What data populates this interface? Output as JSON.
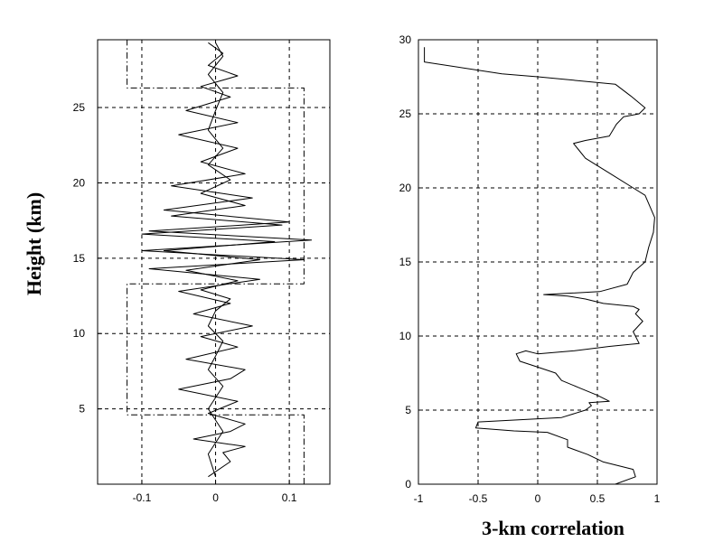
{
  "chart_data": [
    {
      "type": "line",
      "xlabel": "",
      "ylabel": "Height (km)",
      "xlim": [
        -0.16,
        0.155
      ],
      "ylim": [
        0,
        29.5
      ],
      "xticks": [
        -0.1,
        0,
        0.1
      ],
      "xtick_labels": [
        "-0.1",
        "0",
        "0.1"
      ],
      "yticks": [
        5,
        10,
        15,
        20,
        25
      ],
      "ytick_labels": [
        "5",
        "10",
        "15",
        "20",
        "25"
      ],
      "grid": true,
      "legend": "none",
      "series": [
        {
          "style": "solid",
          "x": [
            -0.01,
            0.02,
            0.01,
            0.04,
            -0.03,
            0.02,
            0.04,
            -0.01,
            0.03,
            -0.05,
            0.02,
            0.04,
            -0.04,
            0.03,
            -0.02,
            0.05,
            -0.03,
            0.02,
            -0.05,
            0.06,
            -0.09,
            0.12,
            -0.1,
            0.13,
            -0.09,
            0.1,
            -0.07,
            0.05,
            -0.06,
            0.04,
            -0.02,
            0.03,
            -0.05,
            0.03,
            -0.04,
            0.02,
            -0.02,
            0.03,
            -0.01,
            0.01,
            -0.01
          ],
          "y": [
            0.5,
            1.5,
            2.1,
            2.5,
            3.0,
            3.5,
            4.0,
            4.7,
            5.5,
            6.3,
            7.0,
            7.6,
            8.3,
            9.1,
            9.8,
            10.5,
            11.3,
            12.0,
            12.8,
            13.6,
            14.3,
            14.9,
            15.5,
            16.2,
            16.8,
            17.4,
            18.2,
            19.0,
            19.8,
            20.6,
            21.4,
            22.3,
            23.2,
            24.0,
            24.8,
            25.7,
            26.4,
            27.1,
            27.8,
            28.6,
            29.3
          ]
        },
        {
          "style": "solid",
          "x": [
            0.0,
            -0.01,
            0.01,
            -0.01,
            0.01,
            -0.01,
            0.0,
            0.01,
            -0.01,
            0.0,
            0.02,
            -0.02,
            0.03,
            -0.04,
            0.06,
            -0.07,
            0.08,
            -0.1,
            0.09,
            -0.06,
            0.04,
            -0.02,
            0.02,
            -0.01,
            0.01,
            -0.01,
            0.0,
            0.01,
            -0.01,
            0.01,
            0.0
          ],
          "y": [
            0.5,
            2.0,
            3.5,
            5.0,
            6.5,
            7.6,
            8.5,
            9.5,
            10.5,
            11.5,
            12.3,
            12.9,
            13.5,
            14.2,
            14.9,
            15.5,
            16.1,
            16.6,
            17.2,
            17.8,
            18.5,
            19.3,
            20.2,
            21.2,
            22.3,
            23.5,
            24.8,
            26.0,
            27.2,
            28.4,
            29.3
          ]
        },
        {
          "style": "dashdot",
          "x": [
            0.12,
            0.12,
            -0.12,
            -0.12,
            0.12,
            0.12,
            -0.12,
            -0.12,
            -0.12
          ],
          "y": [
            0.0,
            4.6,
            4.6,
            13.3,
            13.3,
            26.3,
            26.3,
            27.6,
            29.5
          ]
        }
      ]
    },
    {
      "type": "line",
      "xlabel": "3-km correlation",
      "ylabel": "",
      "xlim": [
        -1,
        1
      ],
      "ylim": [
        0,
        30
      ],
      "xticks": [
        -1,
        -0.5,
        0,
        0.5,
        1
      ],
      "xtick_labels": [
        "-1",
        "-0.5",
        "0",
        "0.5",
        "1"
      ],
      "yticks": [
        0,
        5,
        10,
        15,
        20,
        25,
        30
      ],
      "ytick_labels": [
        "0",
        "5",
        "10",
        "15",
        "20",
        "25",
        "30"
      ],
      "grid": true,
      "legend": "none",
      "series": [
        {
          "style": "solid",
          "x": [
            0.65,
            0.82,
            0.8,
            0.55,
            0.42,
            0.25,
            0.25,
            0.08,
            -0.2,
            -0.52,
            -0.5,
            0.2,
            0.4,
            0.45,
            0.43,
            0.6,
            0.5,
            0.35,
            0.2,
            0.15,
            0.0,
            -0.15,
            -0.18,
            -0.1,
            0.0,
            0.3,
            0.6,
            0.85,
            0.8,
            0.88,
            0.82,
            0.85,
            0.8,
            0.55,
            0.4,
            0.25,
            0.05,
            0.52,
            0.75,
            0.8,
            0.9,
            0.93,
            0.97,
            0.98,
            0.9,
            0.8,
            0.6,
            0.4,
            0.35,
            0.3,
            0.4,
            0.6,
            0.66,
            0.72,
            0.85,
            0.9,
            0.78,
            0.65,
            0.0,
            -0.3,
            -0.95,
            -0.95
          ],
          "y": [
            0.0,
            0.5,
            1.0,
            1.5,
            2.0,
            2.5,
            3.0,
            3.5,
            3.6,
            3.8,
            4.2,
            4.5,
            5.0,
            5.3,
            5.5,
            5.6,
            6.0,
            6.5,
            7.0,
            7.5,
            7.9,
            8.3,
            8.8,
            9.0,
            8.8,
            9.0,
            9.3,
            9.5,
            10.3,
            11.0,
            11.5,
            11.8,
            12.0,
            12.2,
            12.5,
            12.7,
            12.8,
            13.0,
            13.5,
            14.3,
            15.0,
            16.0,
            17.0,
            18.0,
            19.5,
            20.0,
            21.0,
            22.0,
            22.5,
            23.0,
            23.2,
            23.5,
            24.3,
            24.8,
            25.0,
            25.4,
            26.2,
            27.0,
            27.5,
            27.7,
            28.5,
            29.5
          ]
        }
      ]
    }
  ]
}
